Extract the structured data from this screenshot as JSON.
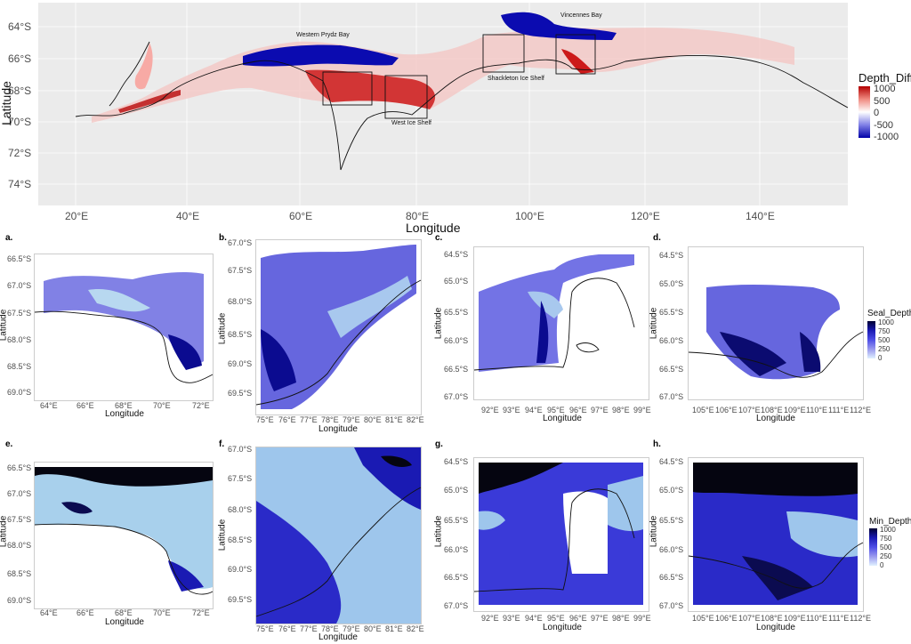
{
  "main_map": {
    "lat_ticks": [
      "64°S",
      "66°S",
      "68°S",
      "70°S",
      "72°S",
      "74°S"
    ],
    "lon_ticks": [
      "20°E",
      "40°E",
      "60°E",
      "80°E",
      "100°E",
      "120°E",
      "140°E"
    ],
    "xlabel": "Longitude",
    "ylabel": "Latitude",
    "places": [
      "Western Prydz Bay",
      "Vincennes Bay",
      "Shackleton Ice Shelf",
      "West Ice Shelf"
    ],
    "legend": {
      "title": "Depth_Diff",
      "labels": [
        "1000",
        "500",
        "0",
        "-500",
        "-1000"
      ],
      "colors": [
        "#b30000",
        "#f08a80",
        "#ffffff",
        "#8080e6",
        "#0000a8"
      ]
    }
  },
  "panels": [
    {
      "id": "a.",
      "lat": [
        "66.5°S",
        "67.0°S",
        "67.5°S",
        "68.0°S",
        "68.5°S",
        "69.0°S"
      ],
      "lon": [
        "64°E",
        "66°E",
        "68°E",
        "70°E",
        "72°E"
      ]
    },
    {
      "id": "b.",
      "lat": [
        "67.0°S",
        "67.5°S",
        "68.0°S",
        "68.5°S",
        "69.0°S",
        "69.5°S"
      ],
      "lon": [
        "75°E",
        "76°E",
        "77°E",
        "78°E",
        "79°E",
        "80°E",
        "81°E",
        "82°E"
      ]
    },
    {
      "id": "c.",
      "lat": [
        "64.5°S",
        "65.0°S",
        "65.5°S",
        "66.0°S",
        "66.5°S",
        "67.0°S"
      ],
      "lon": [
        "92°E",
        "93°E",
        "94°E",
        "95°E",
        "96°E",
        "97°E",
        "98°E",
        "99°E"
      ]
    },
    {
      "id": "d.",
      "lat": [
        "64.5°S",
        "65.0°S",
        "65.5°S",
        "66.0°S",
        "66.5°S",
        "67.0°S"
      ],
      "lon": [
        "105°E",
        "106°E",
        "107°E",
        "108°E",
        "109°E",
        "110°E",
        "111°E",
        "112°E"
      ]
    },
    {
      "id": "e.",
      "lat": [
        "66.5°S",
        "67.0°S",
        "67.5°S",
        "68.0°S",
        "68.5°S",
        "69.0°S"
      ],
      "lon": [
        "64°E",
        "66°E",
        "68°E",
        "70°E",
        "72°E"
      ]
    },
    {
      "id": "f.",
      "lat": [
        "67.0°S",
        "67.5°S",
        "68.0°S",
        "68.5°S",
        "69.0°S",
        "69.5°S"
      ],
      "lon": [
        "75°E",
        "76°E",
        "77°E",
        "78°E",
        "79°E",
        "80°E",
        "81°E",
        "82°E"
      ]
    },
    {
      "id": "g.",
      "lat": [
        "64.5°S",
        "65.0°S",
        "65.5°S",
        "66.0°S",
        "66.5°S",
        "67.0°S"
      ],
      "lon": [
        "92°E",
        "93°E",
        "94°E",
        "95°E",
        "96°E",
        "97°E",
        "98°E",
        "99°E"
      ]
    },
    {
      "id": "h.",
      "lat": [
        "64.5°S",
        "65.0°S",
        "65.5°S",
        "66.0°S",
        "66.5°S",
        "67.0°S"
      ],
      "lon": [
        "105°E",
        "106°E",
        "107°E",
        "108°E",
        "109°E",
        "110°E",
        "111°E",
        "112°E"
      ]
    }
  ],
  "panel_axis": {
    "xlabel": "Longitude",
    "ylabel": "Latitude"
  },
  "legend_seal": {
    "title": "Seal_Depth",
    "labels": [
      "1000",
      "750",
      "500",
      "250",
      "0"
    ],
    "colors": [
      "#000033",
      "#1a1ab3",
      "#4d4de6",
      "#9999ee",
      "#e0f0ff"
    ]
  },
  "legend_min": {
    "title": "Min_Depth",
    "labels": [
      "1000",
      "750",
      "500",
      "250",
      "0"
    ],
    "colors": [
      "#000033",
      "#1a1ab3",
      "#4d4de6",
      "#9999ee",
      "#e0f0ff"
    ]
  }
}
